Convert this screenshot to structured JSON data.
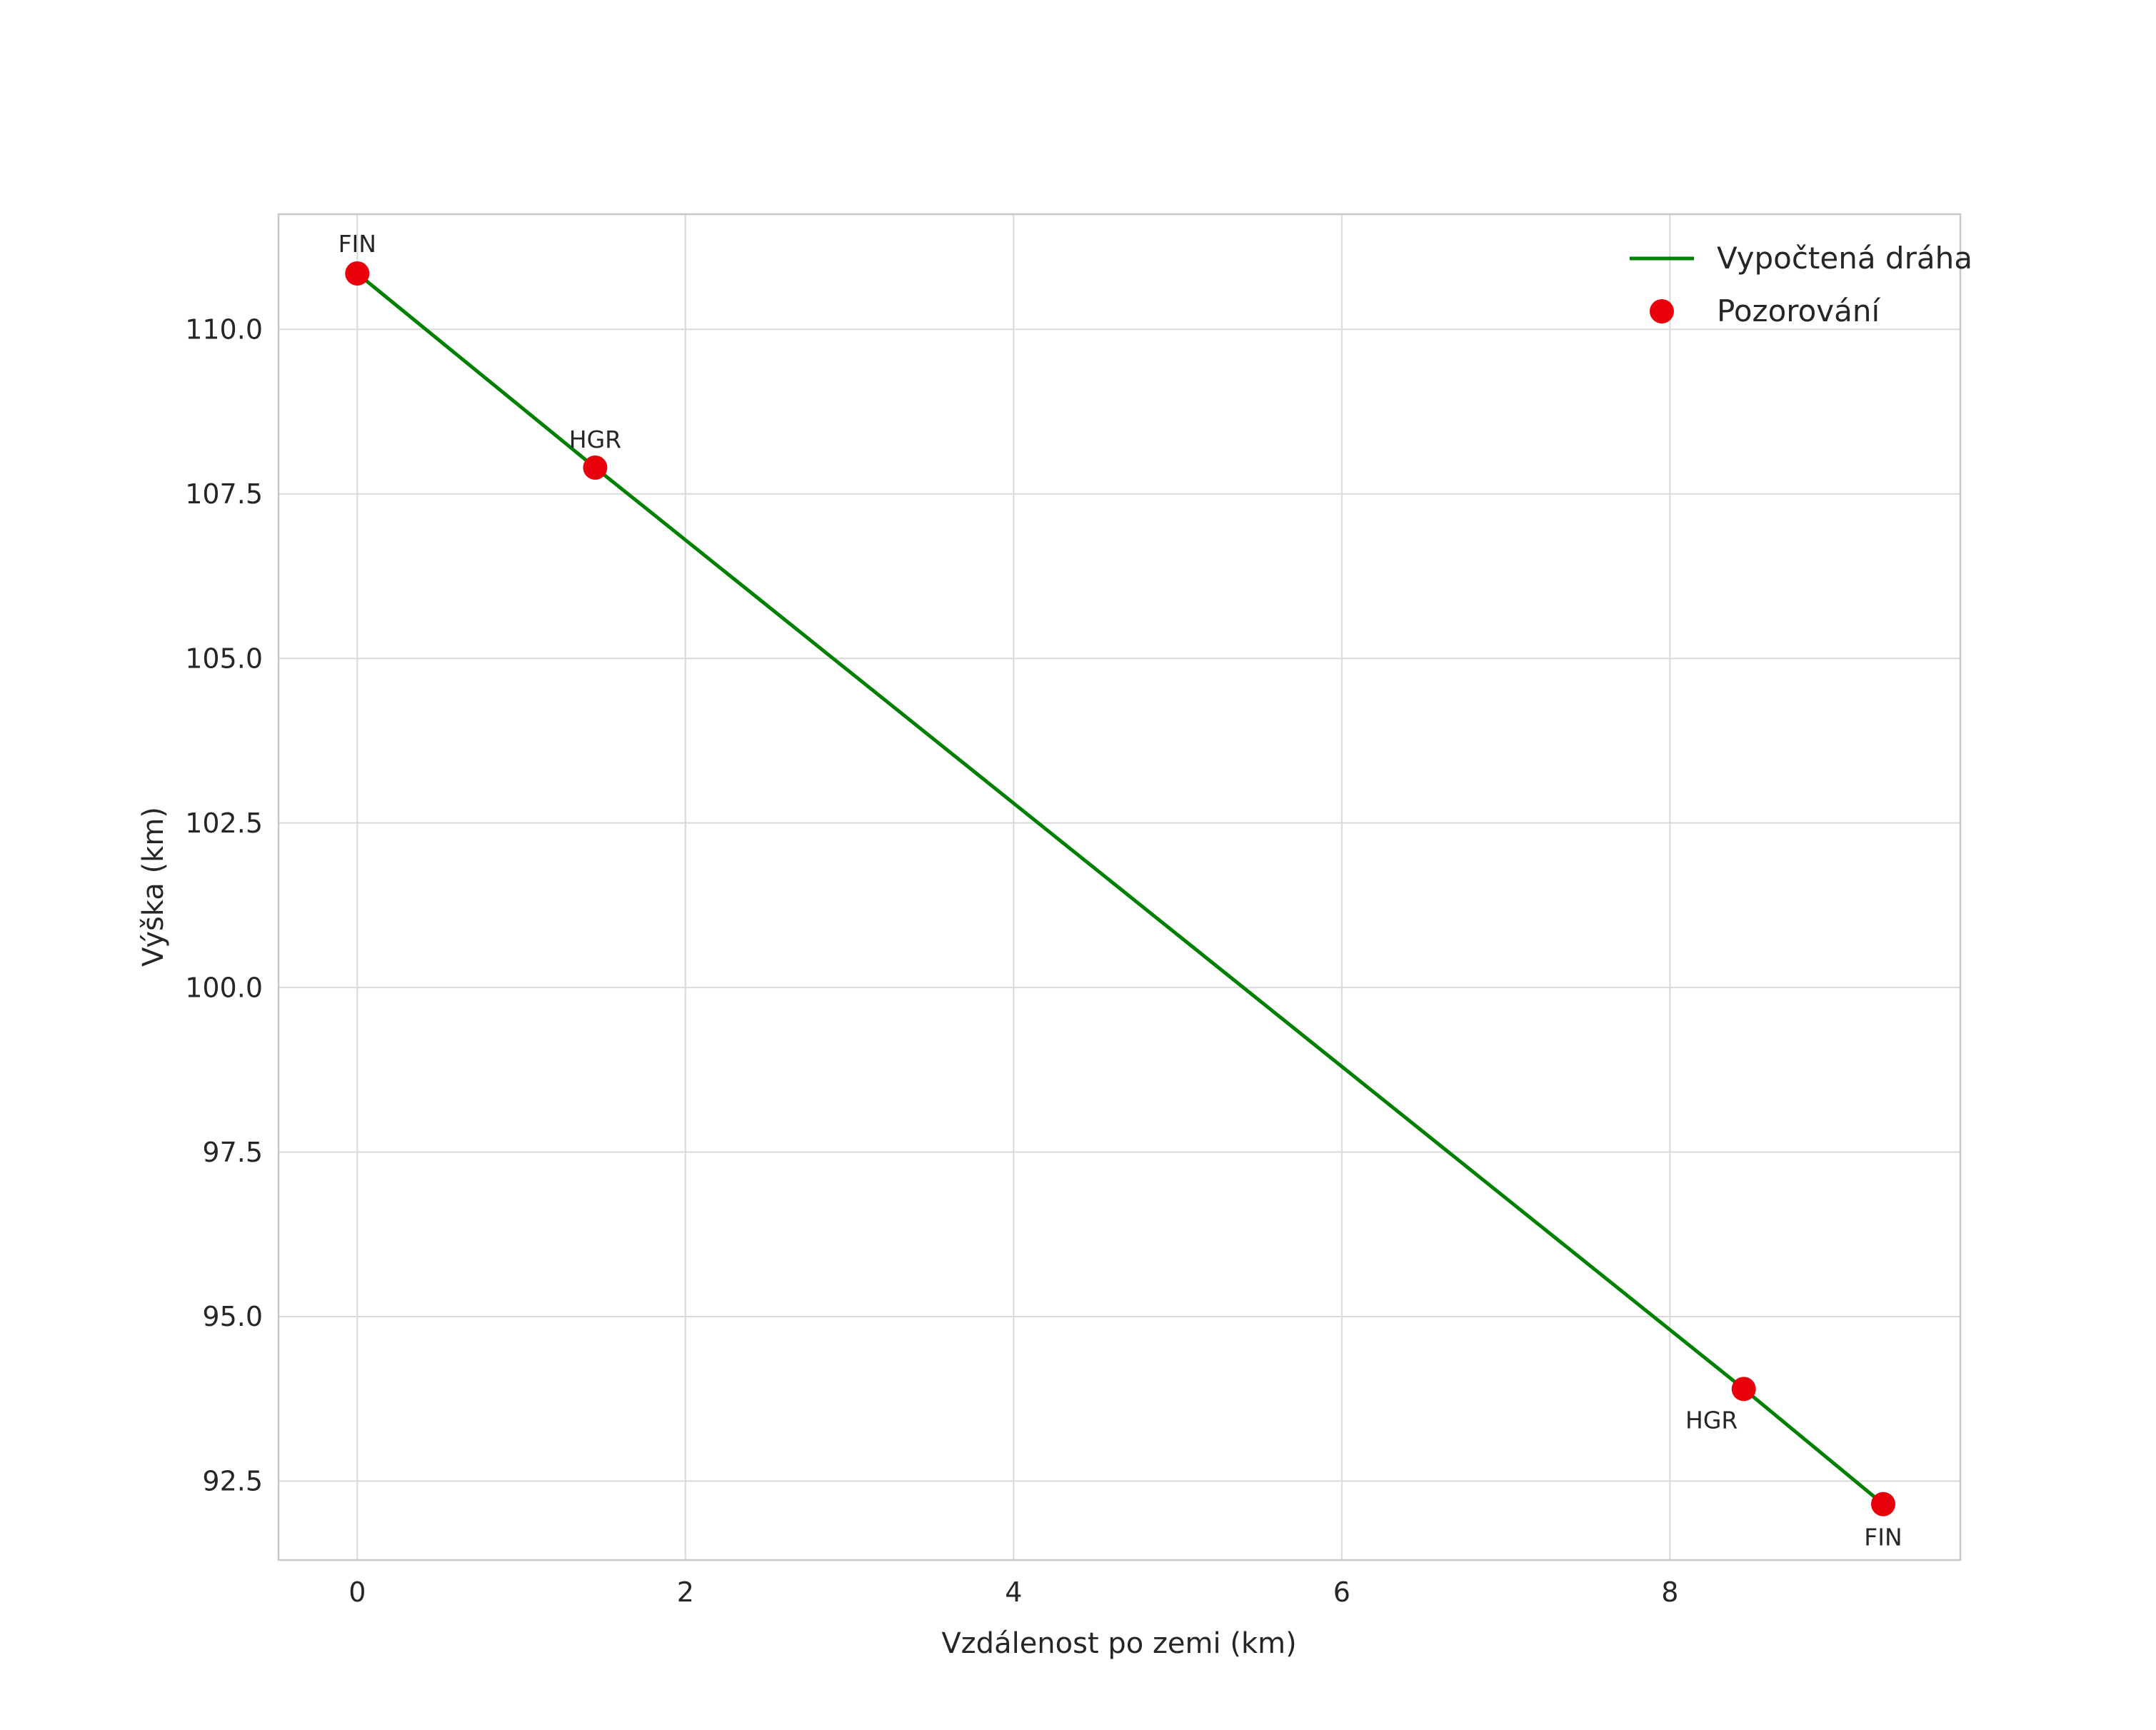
{
  "chart_data": {
    "type": "line",
    "title": "",
    "xlabel": "Vzdálenost po zemi (km)",
    "ylabel": "Výška (km)",
    "xlim": [
      -0.48,
      9.77
    ],
    "ylim": [
      91.3,
      111.75
    ],
    "x_ticks": [
      0,
      2,
      4,
      6,
      8
    ],
    "y_ticks": [
      92.5,
      95.0,
      97.5,
      100.0,
      102.5,
      105.0,
      107.5,
      110.0
    ],
    "grid": true,
    "colors": {
      "line": "#008000",
      "marker": "#e8000b",
      "grid": "#d9d9d9",
      "frame": "#c8c8c8",
      "text": "#262626"
    },
    "legend": {
      "position": "upper right",
      "entries": [
        {
          "label": "Vypočtená dráha",
          "type": "line",
          "color": "#008000"
        },
        {
          "label": "Pozorování",
          "type": "marker",
          "color": "#e8000b"
        }
      ]
    },
    "series": [
      {
        "name": "Vypočtená dráha",
        "type": "line",
        "color": "#008000",
        "points": [
          [
            0,
            110.85
          ],
          [
            1.45,
            107.9
          ],
          [
            8.45,
            93.9
          ],
          [
            9.3,
            92.15
          ]
        ]
      },
      {
        "name": "Pozorování",
        "type": "scatter",
        "color": "#e8000b",
        "points": [
          {
            "x": 0.0,
            "y": 110.85,
            "label": "FIN",
            "label_offset": [
              0,
              -30
            ]
          },
          {
            "x": 1.45,
            "y": 107.9,
            "label": "HGR",
            "label_offset": [
              0,
              -28
            ]
          },
          {
            "x": 8.45,
            "y": 93.9,
            "label": "HGR",
            "label_offset": [
              -45,
              55
            ]
          },
          {
            "x": 9.3,
            "y": 92.15,
            "label": "FIN",
            "label_offset": [
              0,
              58
            ]
          }
        ]
      }
    ]
  }
}
